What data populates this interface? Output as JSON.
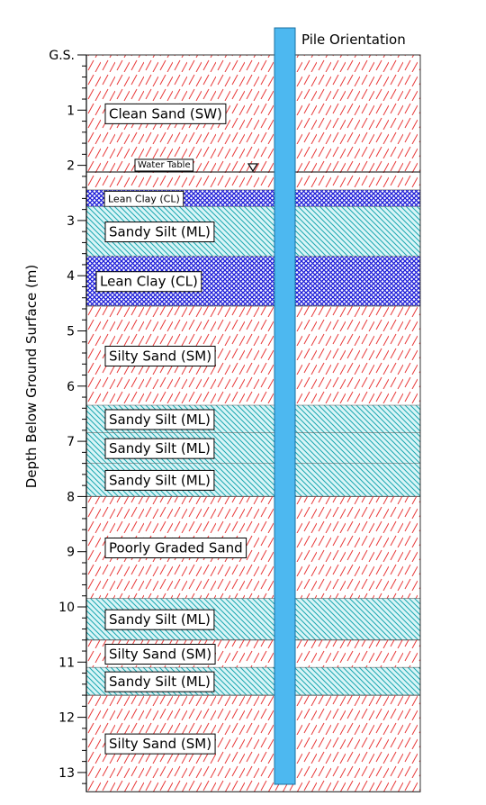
{
  "y_axis_label": "Depth Below Ground Surface (m)",
  "pile_label": "Pile Orientation",
  "ground_surface_label": "G.S.",
  "water_table": {
    "label": "Water Table",
    "depth": 2.12
  },
  "depth_ticks": [
    {
      "depth": 0,
      "label": "G.S."
    },
    {
      "depth": 1,
      "label": "1"
    },
    {
      "depth": 2,
      "label": "2"
    },
    {
      "depth": 3,
      "label": "3"
    },
    {
      "depth": 4,
      "label": "4"
    },
    {
      "depth": 5,
      "label": "5"
    },
    {
      "depth": 6,
      "label": "6"
    },
    {
      "depth": 7,
      "label": "7"
    },
    {
      "depth": 8,
      "label": "8"
    },
    {
      "depth": 9,
      "label": "9"
    },
    {
      "depth": 10,
      "label": "10"
    },
    {
      "depth": 11,
      "label": "11"
    },
    {
      "depth": 12,
      "label": "12"
    },
    {
      "depth": 13,
      "label": "13"
    }
  ],
  "max_depth": 13.35,
  "layers": [
    {
      "label": "Clean Sand (SW)",
      "top": 0.0,
      "bottom": 2.12,
      "material": "sand"
    },
    {
      "label": "",
      "top": 2.12,
      "bottom": 2.45,
      "material": "sand"
    },
    {
      "label": "Lean Clay (CL)",
      "top": 2.45,
      "bottom": 2.75,
      "material": "clay"
    },
    {
      "label": "Sandy Silt (ML)",
      "top": 2.75,
      "bottom": 3.65,
      "material": "silt"
    },
    {
      "label": "Lean Clay (CL)",
      "top": 3.65,
      "bottom": 4.55,
      "material": "clay"
    },
    {
      "label": "Silty Sand (SM)",
      "top": 4.55,
      "bottom": 6.35,
      "material": "sand"
    },
    {
      "label": "Sandy Silt (ML)",
      "top": 6.35,
      "bottom": 6.85,
      "material": "silt"
    },
    {
      "label": "Sandy Silt (ML)",
      "top": 6.85,
      "bottom": 7.4,
      "material": "silt"
    },
    {
      "label": "Sandy Silt (ML)",
      "top": 7.4,
      "bottom": 8.0,
      "material": "silt"
    },
    {
      "label": "Poorly Graded Sand",
      "top": 8.0,
      "bottom": 9.85,
      "material": "sand"
    },
    {
      "label": "Sandy Silt (ML)",
      "top": 9.85,
      "bottom": 10.6,
      "material": "silt"
    },
    {
      "label": "Silty Sand (SM)",
      "top": 10.6,
      "bottom": 11.1,
      "material": "sand"
    },
    {
      "label": "Sandy Silt (ML)",
      "top": 11.1,
      "bottom": 11.6,
      "material": "silt"
    },
    {
      "label": "Silty Sand (SM)",
      "top": 11.6,
      "bottom": 13.35,
      "material": "sand"
    }
  ],
  "colors": {
    "sand_hatch": "#e83a3a",
    "silt_hatch": "#1aa7b0",
    "silt_fill": "#d9f5f7",
    "clay_fill": "#1b1bd8",
    "pile_fill": "#4db8f0",
    "pile_stroke": "#1a6fa0"
  }
}
